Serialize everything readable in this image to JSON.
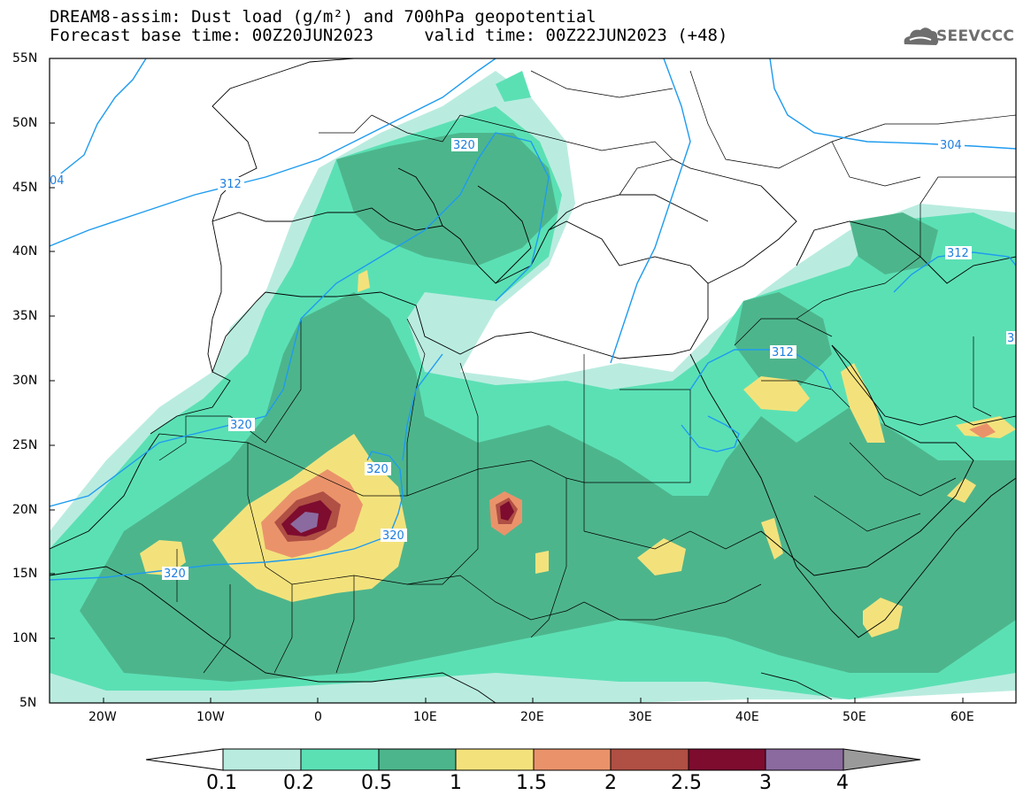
{
  "header": {
    "title_line1": "DREAM8-assim: Dust load (g/m²) and 700hPa geopotential",
    "title_line2": "Forecast base time: 00Z20JUN2023     valid time: 00Z22JUN2023 (+48)",
    "logo_text": "SEEVCCC"
  },
  "axes": {
    "lat_labels": [
      "55N",
      "50N",
      "45N",
      "40N",
      "35N",
      "30N",
      "25N",
      "20N",
      "15N",
      "10N",
      "5N"
    ],
    "lon_labels": [
      "20W",
      "10W",
      "0",
      "10E",
      "20E",
      "30E",
      "40E",
      "50E",
      "60E"
    ]
  },
  "contour_labels": [
    "320",
    "312",
    "304",
    "04",
    "320",
    "320",
    "320",
    "320",
    "312",
    "312",
    "3"
  ],
  "colorbar": {
    "labels": [
      "0.1",
      "0.2",
      "0.5",
      "1",
      "1.5",
      "2",
      "2.5",
      "3",
      "4"
    ],
    "colors": [
      "#ffffff",
      "#b9ecdf",
      "#5be0b4",
      "#4db58c",
      "#f3e27c",
      "#ea936b",
      "#b04f44",
      "#7d0c2f",
      "#8b6a9f",
      "#9a9a9a"
    ]
  },
  "map_colors": {
    "ocean": "#ffffff",
    "contour_line": "#1e9bef",
    "contour_label": "#1e7fe0",
    "boundary": "#000000"
  }
}
